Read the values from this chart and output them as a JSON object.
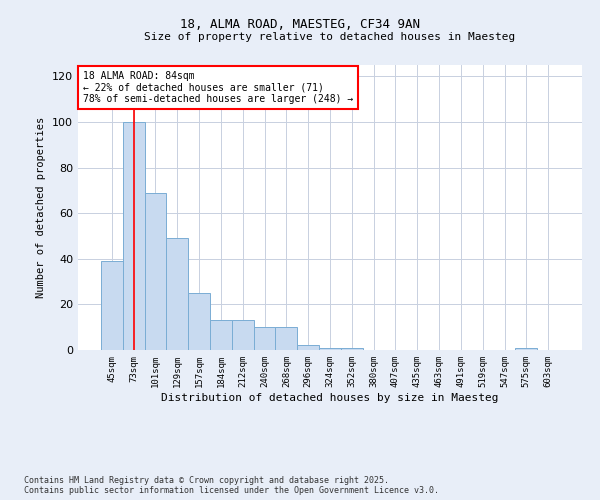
{
  "title1": "18, ALMA ROAD, MAESTEG, CF34 9AN",
  "title2": "Size of property relative to detached houses in Maesteg",
  "xlabel": "Distribution of detached houses by size in Maesteg",
  "ylabel": "Number of detached properties",
  "categories": [
    "45sqm",
    "73sqm",
    "101sqm",
    "129sqm",
    "157sqm",
    "184sqm",
    "212sqm",
    "240sqm",
    "268sqm",
    "296sqm",
    "324sqm",
    "352sqm",
    "380sqm",
    "407sqm",
    "435sqm",
    "463sqm",
    "491sqm",
    "519sqm",
    "547sqm",
    "575sqm",
    "603sqm"
  ],
  "values": [
    39,
    100,
    69,
    49,
    25,
    13,
    13,
    10,
    10,
    2,
    1,
    1,
    0,
    0,
    0,
    0,
    0,
    0,
    0,
    1,
    0
  ],
  "bar_color": "#c8daf0",
  "bar_edge_color": "#7aadd4",
  "ref_line_x": 1,
  "ref_line_color": "red",
  "annotation_text": "18 ALMA ROAD: 84sqm\n← 22% of detached houses are smaller (71)\n78% of semi-detached houses are larger (248) →",
  "annotation_box_color": "white",
  "annotation_box_edge": "red",
  "ylim": [
    0,
    125
  ],
  "yticks": [
    0,
    20,
    40,
    60,
    80,
    100,
    120
  ],
  "footer1": "Contains HM Land Registry data © Crown copyright and database right 2025.",
  "footer2": "Contains public sector information licensed under the Open Government Licence v3.0.",
  "bg_color": "#e8eef8",
  "plot_bg_color": "white",
  "grid_color": "#c8d0e0"
}
